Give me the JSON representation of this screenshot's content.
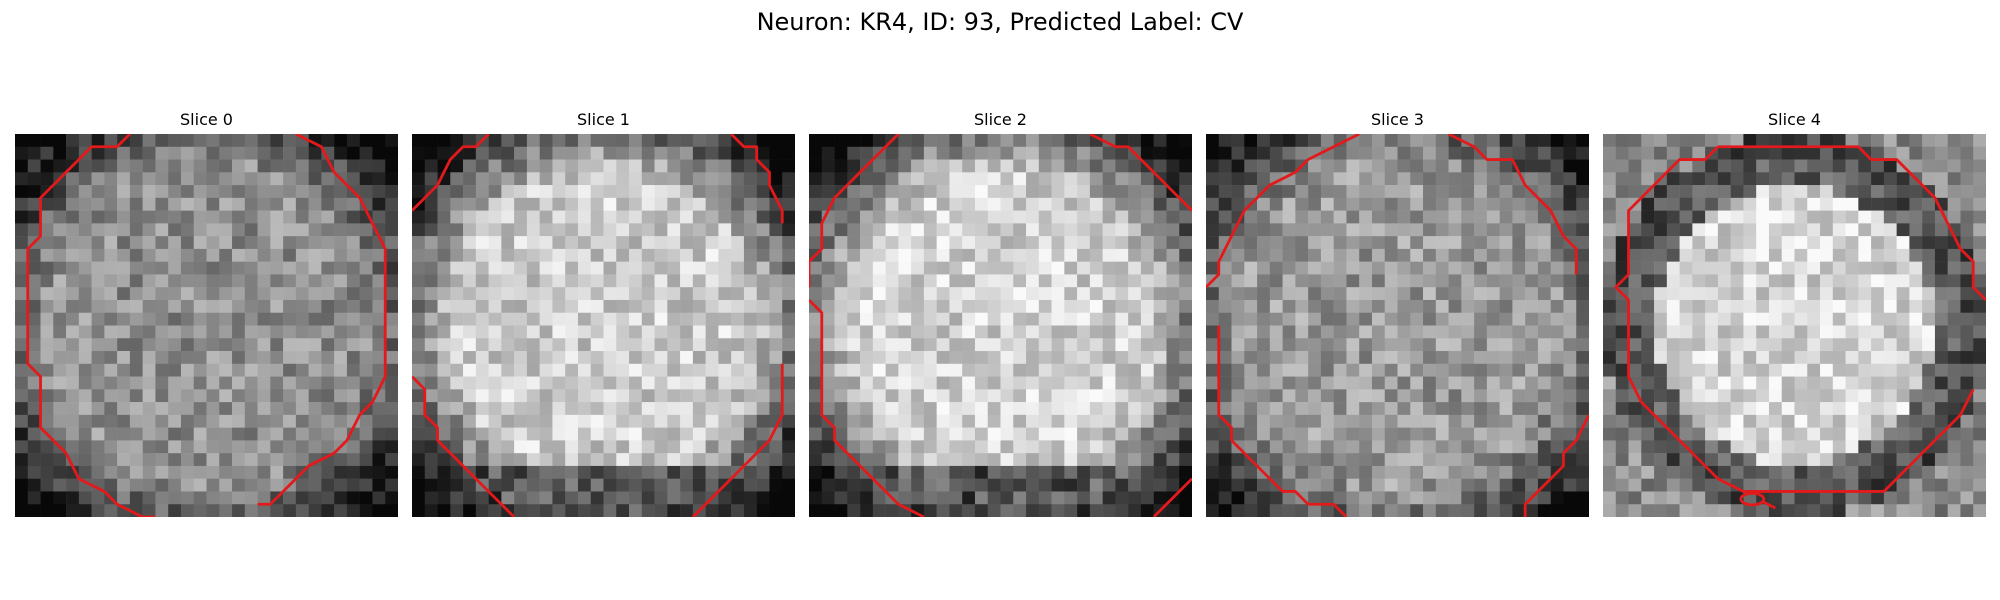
{
  "figure": {
    "title": "Neuron: KR4, ID: 93, Predicted Label: CV"
  },
  "panels": [
    {
      "label": "Slice 0",
      "style": "ring",
      "seed": 11,
      "center": 0.56,
      "edge": 0.3
    },
    {
      "label": "Slice 1",
      "style": "blob",
      "seed": 23,
      "center": 0.8,
      "edge": 0.2
    },
    {
      "label": "Slice 2",
      "style": "blob",
      "seed": 37,
      "center": 0.82,
      "edge": 0.18
    },
    {
      "label": "Slice 3",
      "style": "ring",
      "seed": 41,
      "center": 0.6,
      "edge": 0.22
    },
    {
      "label": "Slice 4",
      "style": "halo",
      "seed": 53,
      "center": 0.84,
      "edge": 0.28
    }
  ],
  "contour": {
    "color": "#e31a1c"
  },
  "colormap": "gray"
}
